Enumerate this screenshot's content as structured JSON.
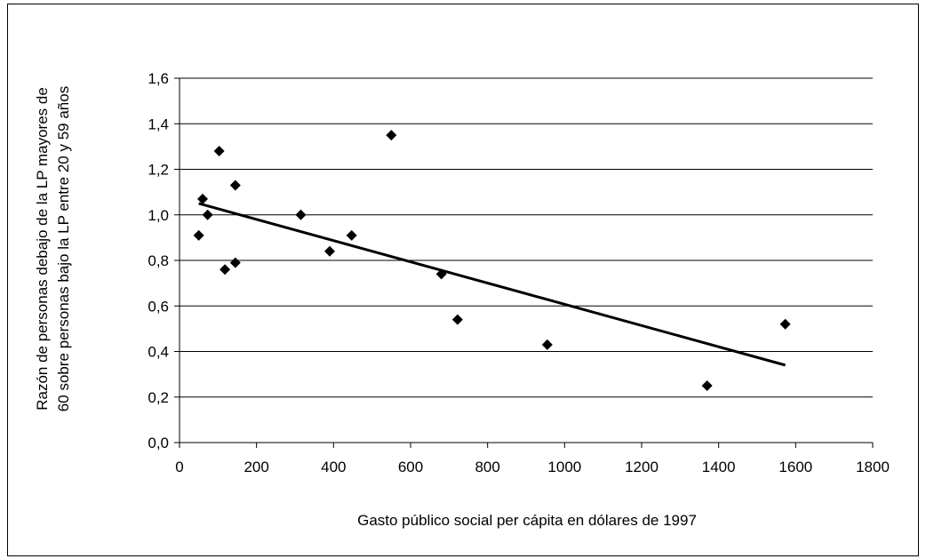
{
  "chart_data": {
    "type": "scatter",
    "title": "",
    "xlabel": "Gasto público social per cápita en dólares de 1997",
    "ylabel_lines": [
      "Razón de personas debajo de la LP mayores de",
      "60 sobre personas bajo la LP entre 20 y 59 años"
    ],
    "xlim": [
      0,
      1800
    ],
    "ylim": [
      0,
      1.6
    ],
    "x_ticks": [
      0,
      200,
      400,
      600,
      800,
      1000,
      1200,
      1400,
      1600,
      1800
    ],
    "x_tick_labels": [
      "0",
      "200",
      "400",
      "600",
      "800",
      "1000",
      "1200",
      "1400",
      "1600",
      "1800"
    ],
    "y_ticks": [
      0,
      0.2,
      0.4,
      0.6,
      0.8,
      1.0,
      1.2,
      1.4,
      1.6
    ],
    "y_tick_labels": [
      "0,0",
      "0,2",
      "0,4",
      "0,6",
      "0,8",
      "1,0",
      "1,2",
      "1,4",
      "1,6"
    ],
    "horizontal_grid": true,
    "marker": "diamond",
    "marker_color": "#000000",
    "points": [
      {
        "x": 50,
        "y": 0.91
      },
      {
        "x": 60,
        "y": 1.07
      },
      {
        "x": 73,
        "y": 1.0
      },
      {
        "x": 103,
        "y": 1.28
      },
      {
        "x": 118,
        "y": 0.76
      },
      {
        "x": 145,
        "y": 1.13
      },
      {
        "x": 145,
        "y": 0.79
      },
      {
        "x": 315,
        "y": 1.0
      },
      {
        "x": 390,
        "y": 0.84
      },
      {
        "x": 447,
        "y": 0.91
      },
      {
        "x": 550,
        "y": 1.35
      },
      {
        "x": 680,
        "y": 0.74
      },
      {
        "x": 722,
        "y": 0.54
      },
      {
        "x": 955,
        "y": 0.43
      },
      {
        "x": 1370,
        "y": 0.25
      },
      {
        "x": 1573,
        "y": 0.52
      }
    ],
    "trendline": {
      "x": [
        50,
        1573
      ],
      "y": [
        1.05,
        0.34
      ],
      "color": "#000000"
    }
  }
}
